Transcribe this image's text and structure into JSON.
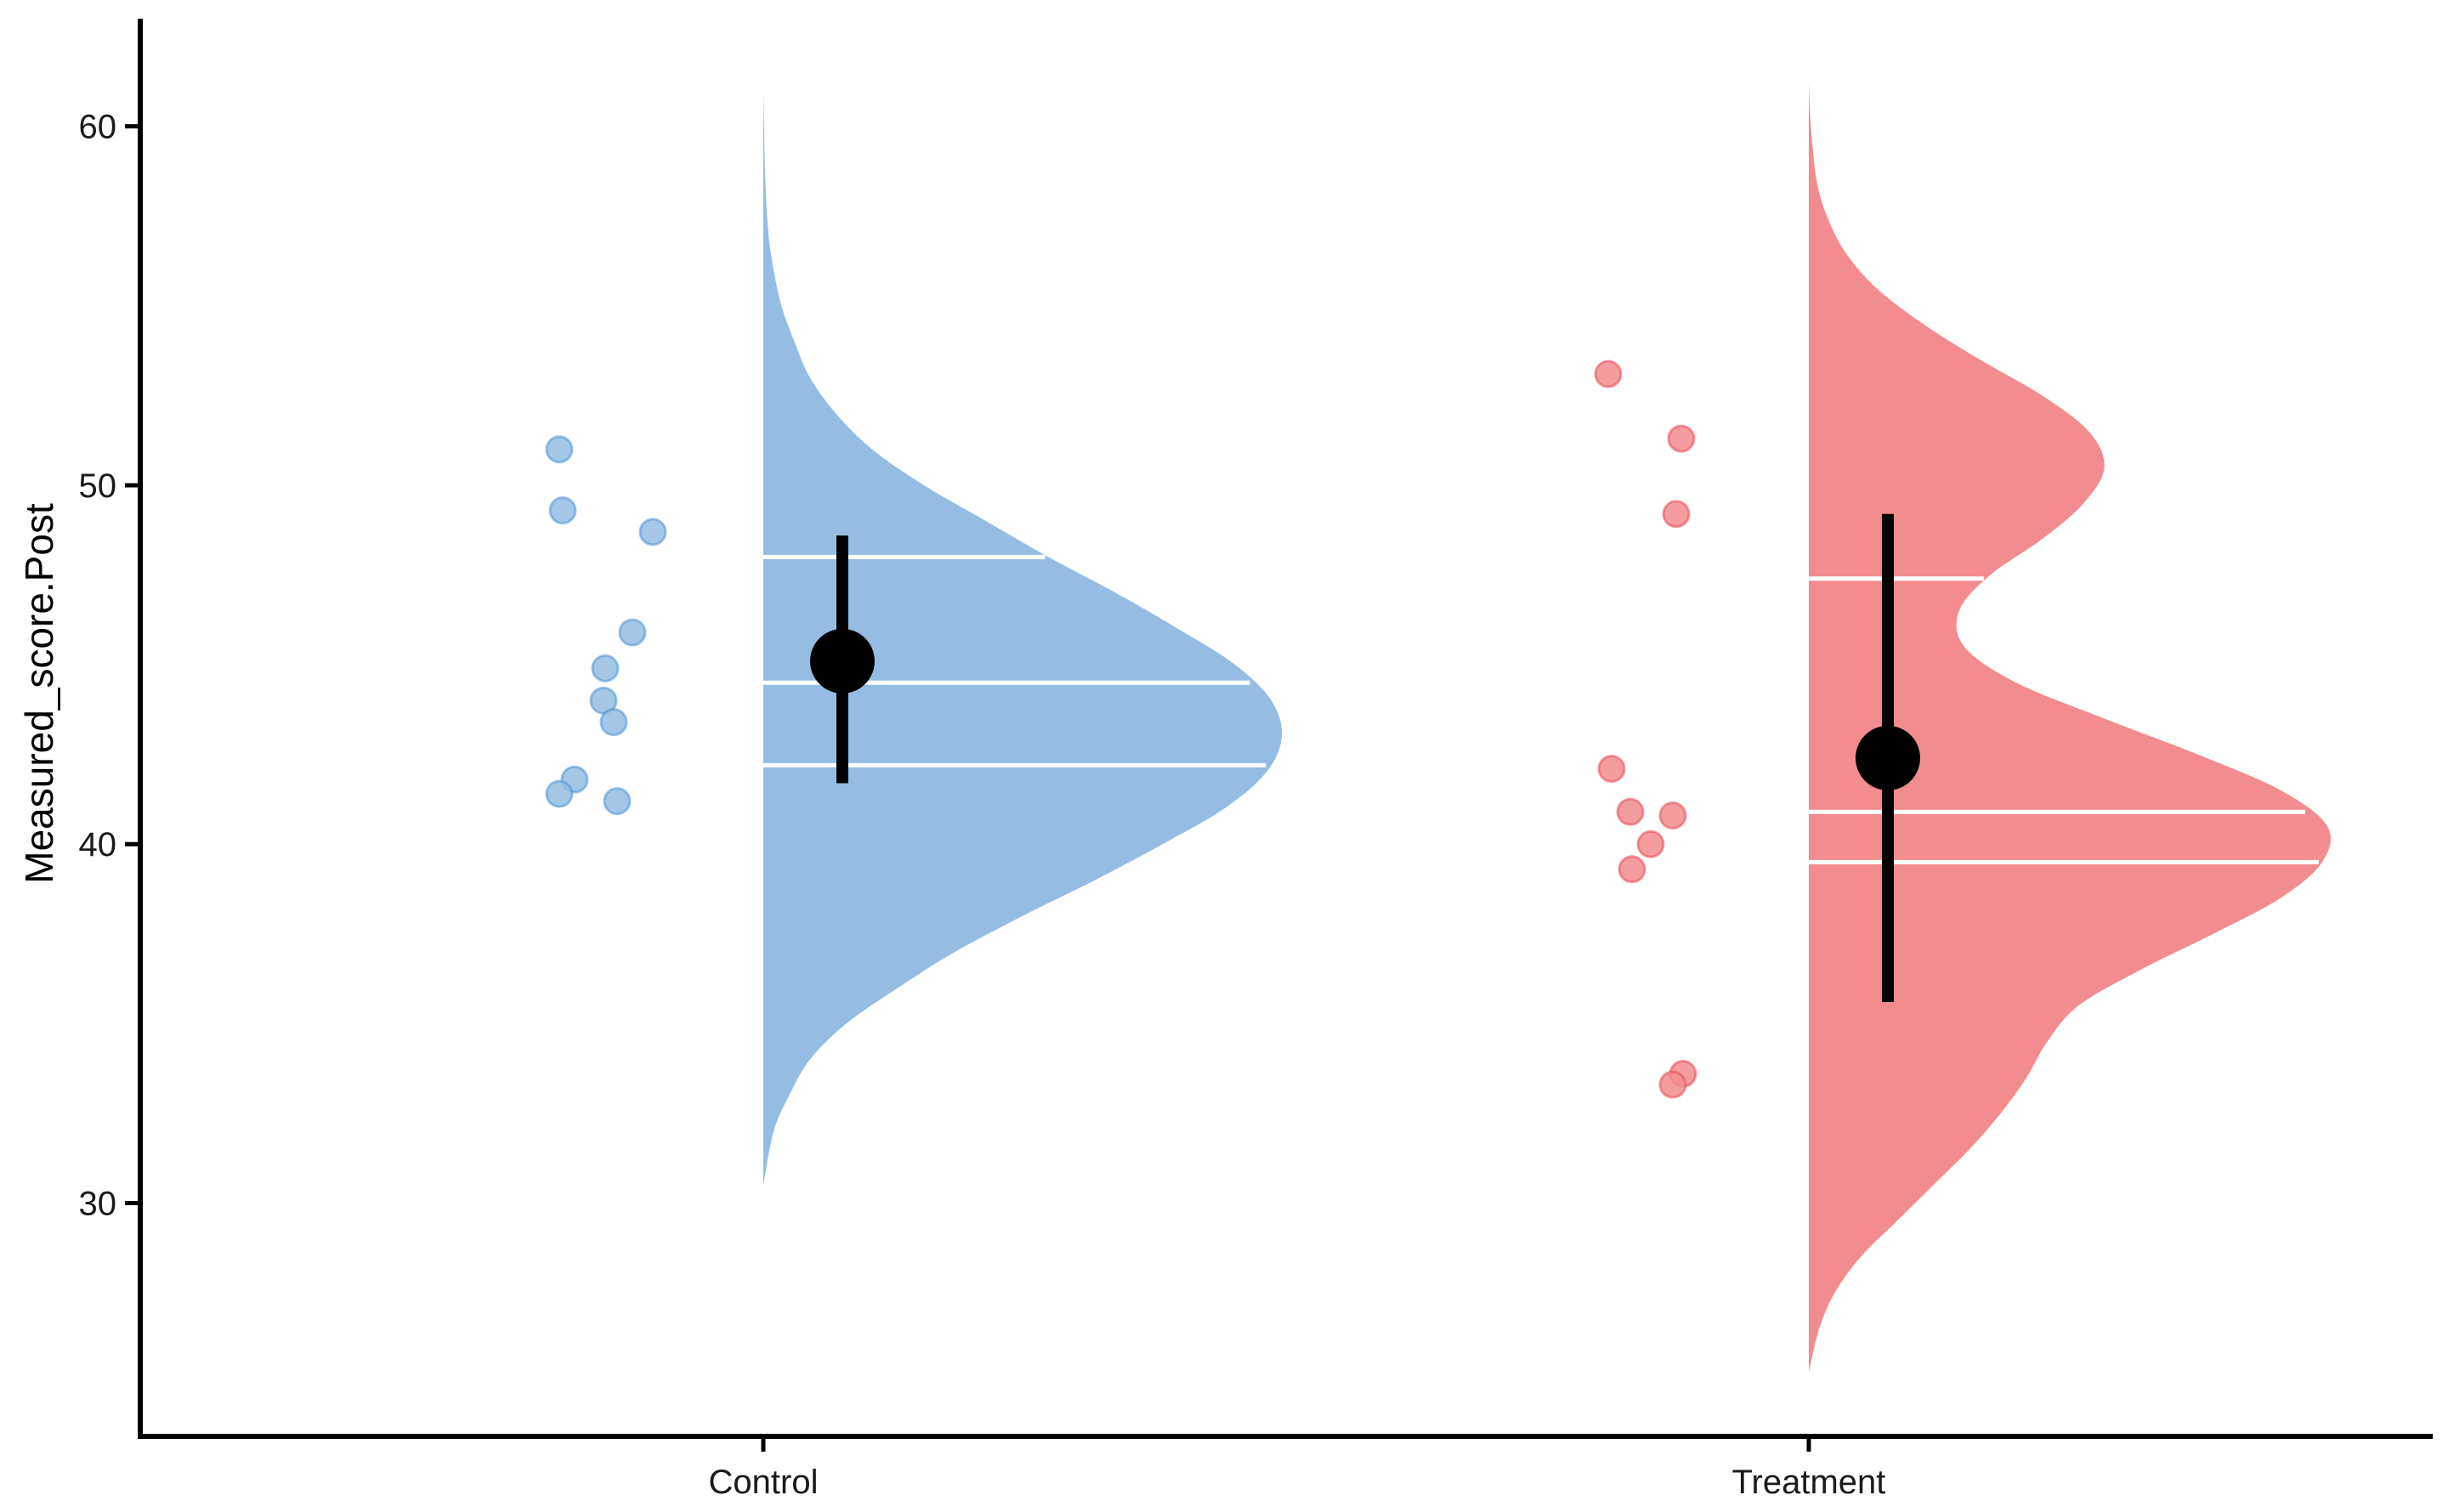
{
  "chart_data": {
    "type": "raincloud",
    "ylabel": "Measured_score.Post",
    "xlabel": "",
    "ylim": [
      23.5,
      63
    ],
    "y_ticks": [
      30,
      40,
      50,
      60
    ],
    "categories": [
      "Control",
      "Treatment"
    ],
    "grid": false,
    "groups": [
      {
        "category": "Control",
        "color": "#95bde3",
        "point_color": "#4f93d6",
        "points": [
          51.0,
          49.3,
          48.7,
          45.9,
          44.9,
          44.0,
          43.4,
          41.8,
          41.4,
          41.2
        ],
        "mean": 45.1,
        "interval": [
          41.7,
          48.6
        ],
        "quantiles": [
          42.2,
          44.5,
          48.0
        ],
        "density_range": [
          30.5,
          61.0
        ],
        "density": [
          [
            30.5,
            0.0
          ],
          [
            32.0,
            0.02
          ],
          [
            33.0,
            0.05
          ],
          [
            34.0,
            0.09
          ],
          [
            35.0,
            0.16
          ],
          [
            36.0,
            0.26
          ],
          [
            37.0,
            0.37
          ],
          [
            38.0,
            0.5
          ],
          [
            39.0,
            0.64
          ],
          [
            40.0,
            0.77
          ],
          [
            41.0,
            0.89
          ],
          [
            42.0,
            0.97
          ],
          [
            43.0,
            1.0
          ],
          [
            44.0,
            0.98
          ],
          [
            45.0,
            0.91
          ],
          [
            46.0,
            0.8
          ],
          [
            47.0,
            0.68
          ],
          [
            48.0,
            0.55
          ],
          [
            49.0,
            0.43
          ],
          [
            50.0,
            0.31
          ],
          [
            51.0,
            0.21
          ],
          [
            52.0,
            0.14
          ],
          [
            53.0,
            0.09
          ],
          [
            54.0,
            0.06
          ],
          [
            55.0,
            0.035
          ],
          [
            56.0,
            0.02
          ],
          [
            57.0,
            0.01
          ],
          [
            58.5,
            0.004
          ],
          [
            61.0,
            0.0
          ]
        ]
      },
      {
        "category": "Treatment",
        "color": "#f28c8e",
        "point_color": "#e84a55",
        "points": [
          53.1,
          51.3,
          49.2,
          42.1,
          40.9,
          40.8,
          40.0,
          39.3,
          33.6,
          33.3
        ],
        "mean": 42.4,
        "interval": [
          35.6,
          49.2
        ],
        "quantiles": [
          39.5,
          40.9,
          47.4
        ],
        "density_range": [
          25.3,
          61.2
        ],
        "density": [
          [
            25.3,
            0.0
          ],
          [
            26.5,
            0.02
          ],
          [
            27.5,
            0.05
          ],
          [
            28.5,
            0.1
          ],
          [
            29.5,
            0.17
          ],
          [
            30.5,
            0.24
          ],
          [
            31.5,
            0.31
          ],
          [
            32.5,
            0.37
          ],
          [
            33.5,
            0.42
          ],
          [
            34.5,
            0.46
          ],
          [
            35.5,
            0.52
          ],
          [
            36.5,
            0.64
          ],
          [
            37.5,
            0.78
          ],
          [
            38.5,
            0.91
          ],
          [
            39.5,
            0.99
          ],
          [
            40.5,
            1.0
          ],
          [
            41.5,
            0.91
          ],
          [
            42.5,
            0.75
          ],
          [
            43.5,
            0.57
          ],
          [
            44.5,
            0.4
          ],
          [
            45.5,
            0.3
          ],
          [
            46.5,
            0.29
          ],
          [
            47.5,
            0.35
          ],
          [
            48.5,
            0.45
          ],
          [
            49.5,
            0.53
          ],
          [
            50.5,
            0.57
          ],
          [
            51.5,
            0.54
          ],
          [
            52.5,
            0.45
          ],
          [
            53.5,
            0.33
          ],
          [
            54.5,
            0.22
          ],
          [
            55.5,
            0.13
          ],
          [
            56.5,
            0.07
          ],
          [
            57.5,
            0.035
          ],
          [
            58.5,
            0.015
          ],
          [
            60.0,
            0.004
          ],
          [
            61.2,
            0.0
          ]
        ]
      }
    ]
  }
}
